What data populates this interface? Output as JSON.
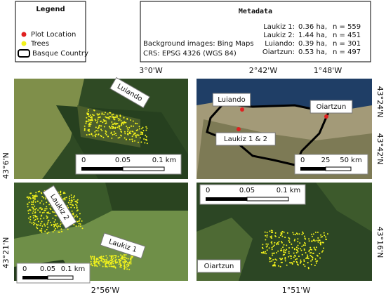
{
  "legend": {
    "title": "Legend",
    "items": [
      "Plot Location",
      "Trees",
      "Basque Country"
    ]
  },
  "metadata": {
    "title": "Metadata",
    "lines": [
      "Background images: Bing Maps",
      "CRS:  EPSG 4326 (WGS 84)"
    ],
    "sites": [
      {
        "name": "Laukiz 1:",
        "area": "0.36 ha,",
        "n": "n = 559"
      },
      {
        "name": "Laukiz 2:",
        "area": "1.44 ha,",
        "n": "n = 451"
      },
      {
        "name": "Luiando:",
        "area": "0.39 ha,",
        "n": "n = 301"
      },
      {
        "name": "Oiartzun:",
        "area": "0.53 ha,",
        "n": "n = 497"
      }
    ]
  },
  "panels": [
    {
      "labels": [
        "Luiando"
      ],
      "top_coords": [
        "3°0'W"
      ],
      "side_coords": [
        "43°6'N"
      ],
      "scale": [
        "0",
        "0.05",
        "0.1 km"
      ]
    },
    {
      "labels": [
        "Luiando",
        "Oiartzun",
        "Laukiz 1 & 2"
      ],
      "top_coords": [
        "2°42'W",
        "1°48'W"
      ],
      "side_coords": [
        "43°24'N",
        "43°42'N"
      ],
      "scale": [
        "0",
        "25",
        "50 km"
      ]
    },
    {
      "labels": [
        "Laukiz 2",
        "Laukiz 1"
      ],
      "bottom_coords": [
        "2°56'W"
      ],
      "side_coords": [
        "43°21'N"
      ],
      "scale": [
        "0",
        "0.05",
        "0.1 km"
      ]
    },
    {
      "labels": [
        "Oiartzun"
      ],
      "bottom_coords": [
        "1°51'W"
      ],
      "side_coords": [
        "43°16'N"
      ],
      "scale": [
        "0",
        "0.05",
        "0.1 km"
      ]
    }
  ]
}
